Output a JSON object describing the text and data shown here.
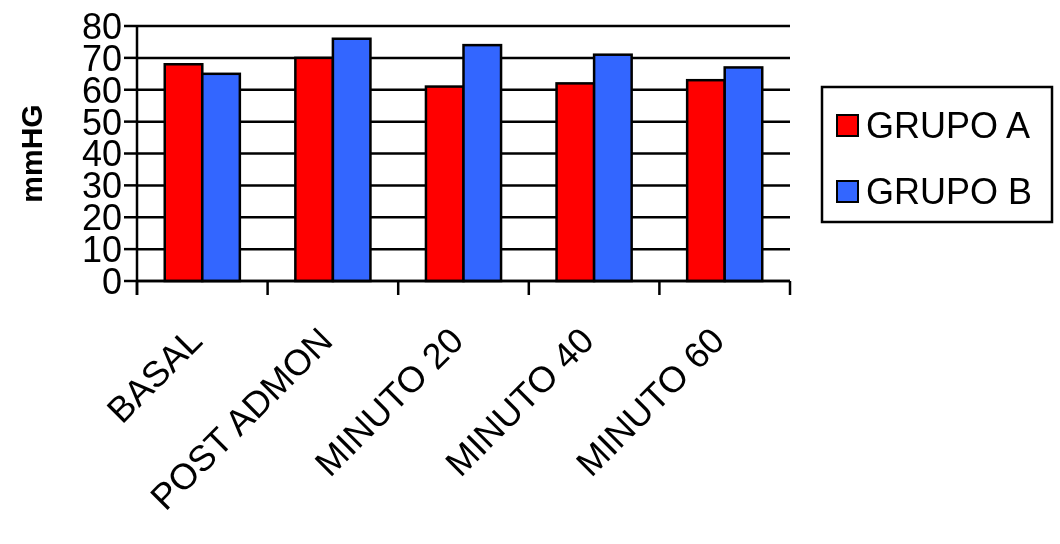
{
  "chart_data": {
    "type": "bar",
    "ylabel": "mmHG",
    "categories": [
      "BASAL",
      "POST ADMON",
      "MINUTO 20",
      "MINUTO 40",
      "MINUTO 60"
    ],
    "series": [
      {
        "name": "GRUPO A",
        "color": "#ff0000",
        "values": [
          68,
          70,
          61,
          62,
          63
        ]
      },
      {
        "name": "GRUPO B",
        "color": "#3366ff",
        "values": [
          65,
          76,
          74,
          71,
          67
        ]
      }
    ],
    "ylim": [
      0,
      80
    ],
    "yticks": [
      0,
      10,
      20,
      30,
      40,
      50,
      60,
      70,
      80
    ],
    "grid": "y",
    "legend": "right"
  }
}
